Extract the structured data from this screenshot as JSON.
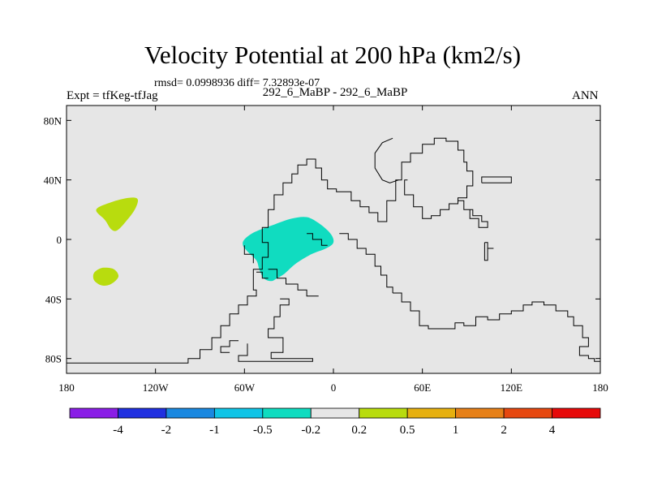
{
  "header": {
    "title": "Velocity Potential at 200 hPa (km2/s)",
    "stats": "rmsd= 0.0998936 diff= 7.32893e-07",
    "left_label": "Expt = tfKeg-tfJag",
    "center_label": "292_6_MaBP - 292_6_MaBP",
    "right_label": "ANN"
  },
  "chart_data": {
    "type": "contour-map",
    "title": "Velocity Potential at 200 hPa (km2/s)",
    "xlim": [
      -180,
      180
    ],
    "ylim": [
      -90,
      90
    ],
    "x_ticks": [
      {
        "value": -180,
        "label": "180"
      },
      {
        "value": -120,
        "label": "120W"
      },
      {
        "value": -60,
        "label": "60W"
      },
      {
        "value": 0,
        "label": "0"
      },
      {
        "value": 60,
        "label": "60E"
      },
      {
        "value": 120,
        "label": "120E"
      },
      {
        "value": 180,
        "label": "180"
      }
    ],
    "y_ticks": [
      {
        "value": 80,
        "label": "80N"
      },
      {
        "value": 40,
        "label": "40N"
      },
      {
        "value": 0,
        "label": "0"
      },
      {
        "value": -40,
        "label": "40S"
      },
      {
        "value": -80,
        "label": "80S"
      }
    ],
    "background_color": "#e6e6e6",
    "colorbar": {
      "colors": [
        "#8a1ee6",
        "#2030e0",
        "#1a88e0",
        "#10c4e6",
        "#10dcc0",
        "#e6e6e6",
        "#b8dc0e",
        "#e6b010",
        "#e68018",
        "#e64810",
        "#e60a0a"
      ],
      "levels": [
        "-4",
        "-2",
        "-1",
        "-0.5",
        "-0.2",
        "0.2",
        "0.5",
        "1",
        "2",
        "4"
      ]
    },
    "regions": [
      {
        "level_bin": "0.2 to 0.5",
        "color": "#b8dc0e",
        "outline": [
          [
            -160,
            20
          ],
          [
            -150,
            25
          ],
          [
            -138,
            28
          ],
          [
            -132,
            27
          ],
          [
            -134,
            20
          ],
          [
            -140,
            12
          ],
          [
            -146,
            6
          ],
          [
            -150,
            7
          ],
          [
            -154,
            13
          ]
        ]
      },
      {
        "level_bin": "0.2 to 0.5",
        "color": "#b8dc0e",
        "outline": [
          [
            -160,
            -21
          ],
          [
            -155,
            -19
          ],
          [
            -148,
            -20
          ],
          [
            -145,
            -25
          ],
          [
            -150,
            -30
          ],
          [
            -156,
            -31
          ],
          [
            -161,
            -28
          ],
          [
            -162,
            -24
          ]
        ]
      },
      {
        "level_bin": "-0.5 to -0.2",
        "color": "#10dcc0",
        "outline": [
          [
            -60,
            0
          ],
          [
            -53,
            5
          ],
          [
            -40,
            10
          ],
          [
            -28,
            14
          ],
          [
            -18,
            15
          ],
          [
            -10,
            11
          ],
          [
            -2,
            4
          ],
          [
            0,
            -2
          ],
          [
            -5,
            -6
          ],
          [
            -15,
            -10
          ],
          [
            -25,
            -16
          ],
          [
            -33,
            -23
          ],
          [
            -38,
            -26
          ],
          [
            -42,
            -28
          ],
          [
            -47,
            -26
          ],
          [
            -50,
            -20
          ],
          [
            -52,
            -14
          ],
          [
            -58,
            -8
          ],
          [
            -61,
            -4
          ]
        ]
      }
    ],
    "coastlines": [
      [
        [
          -180,
          -83
        ],
        [
          -98,
          -83
        ],
        [
          -98,
          -80
        ],
        [
          -90,
          -80
        ],
        [
          -90,
          -74
        ],
        [
          -82,
          -74
        ],
        [
          -82,
          -66
        ],
        [
          -76,
          -66
        ],
        [
          -76,
          -58
        ],
        [
          -70,
          -58
        ],
        [
          -70,
          -50
        ],
        [
          -64,
          -50
        ],
        [
          -64,
          -44
        ],
        [
          -58,
          -44
        ],
        [
          -58,
          -38
        ],
        [
          -52,
          -38
        ],
        [
          -52,
          -34
        ],
        [
          -54,
          -34
        ],
        [
          -54,
          -20
        ],
        [
          -48,
          -20
        ],
        [
          -48,
          -12
        ],
        [
          -44,
          -12
        ],
        [
          -44,
          -2
        ],
        [
          -48,
          -2
        ],
        [
          -48,
          8
        ],
        [
          -44,
          8
        ],
        [
          -44,
          20
        ],
        [
          -40,
          20
        ],
        [
          -40,
          30
        ],
        [
          -34,
          30
        ],
        [
          -34,
          38
        ],
        [
          -28,
          38
        ],
        [
          -28,
          44
        ],
        [
          -24,
          44
        ],
        [
          -24,
          50
        ],
        [
          -18,
          50
        ],
        [
          -18,
          54
        ],
        [
          -12,
          54
        ],
        [
          -12,
          48
        ],
        [
          -8,
          48
        ],
        [
          -8,
          40
        ],
        [
          -4,
          40
        ],
        [
          -4,
          34
        ],
        [
          2,
          34
        ],
        [
          2,
          32
        ],
        [
          12,
          32
        ],
        [
          12,
          26
        ],
        [
          18,
          26
        ],
        [
          18,
          22
        ],
        [
          24,
          22
        ],
        [
          24,
          18
        ],
        [
          30,
          18
        ],
        [
          30,
          12
        ],
        [
          36,
          12
        ],
        [
          36,
          26
        ],
        [
          42,
          26
        ],
        [
          42,
          40
        ],
        [
          46,
          40
        ],
        [
          46,
          52
        ],
        [
          52,
          52
        ],
        [
          52,
          58
        ],
        [
          60,
          58
        ],
        [
          60,
          64
        ],
        [
          68,
          64
        ],
        [
          68,
          68
        ],
        [
          76,
          68
        ],
        [
          76,
          66
        ],
        [
          84,
          66
        ],
        [
          84,
          60
        ],
        [
          88,
          60
        ],
        [
          88,
          52
        ],
        [
          90,
          52
        ],
        [
          90,
          46
        ],
        [
          94,
          46
        ],
        [
          94,
          36
        ],
        [
          90,
          36
        ],
        [
          90,
          28
        ],
        [
          84,
          28
        ],
        [
          84,
          24
        ],
        [
          78,
          24
        ],
        [
          78,
          20
        ],
        [
          72,
          20
        ],
        [
          72,
          16
        ],
        [
          66,
          16
        ],
        [
          66,
          14
        ],
        [
          60,
          14
        ],
        [
          60,
          22
        ],
        [
          54,
          22
        ],
        [
          54,
          30
        ],
        [
          48,
          30
        ],
        [
          48,
          40
        ],
        [
          50,
          40
        ]
      ],
      [
        [
          40,
          68
        ],
        [
          33,
          65
        ],
        [
          28,
          58
        ],
        [
          28,
          48
        ],
        [
          33,
          40
        ],
        [
          38,
          38
        ],
        [
          44,
          40
        ]
      ],
      [
        [
          84,
          26
        ],
        [
          88,
          26
        ],
        [
          88,
          20
        ],
        [
          94,
          20
        ],
        [
          94,
          16
        ],
        [
          100,
          16
        ],
        [
          100,
          12
        ],
        [
          104,
          12
        ],
        [
          104,
          8
        ],
        [
          98,
          8
        ],
        [
          98,
          14
        ],
        [
          92,
          14
        ],
        [
          92,
          20
        ],
        [
          88,
          20
        ]
      ],
      [
        [
          4,
          4
        ],
        [
          10,
          4
        ],
        [
          10,
          0
        ],
        [
          16,
          0
        ],
        [
          16,
          -6
        ],
        [
          22,
          -6
        ],
        [
          22,
          -10
        ],
        [
          28,
          -10
        ],
        [
          28,
          -18
        ],
        [
          32,
          -18
        ],
        [
          32,
          -24
        ],
        [
          36,
          -24
        ],
        [
          36,
          -32
        ],
        [
          40,
          -32
        ],
        [
          40,
          -36
        ]
      ],
      [
        [
          -18,
          4
        ],
        [
          -14,
          4
        ],
        [
          -14,
          0
        ],
        [
          -8,
          0
        ],
        [
          -8,
          -4
        ],
        [
          -4,
          -4
        ]
      ],
      [
        [
          40,
          -36
        ],
        [
          46,
          -36
        ],
        [
          46,
          -42
        ],
        [
          52,
          -42
        ],
        [
          52,
          -48
        ],
        [
          58,
          -48
        ],
        [
          58,
          -58
        ],
        [
          64,
          -58
        ],
        [
          64,
          -60
        ],
        [
          82,
          -60
        ],
        [
          82,
          -56
        ],
        [
          88,
          -56
        ],
        [
          88,
          -58
        ],
        [
          96,
          -58
        ],
        [
          96,
          -52
        ],
        [
          104,
          -52
        ],
        [
          104,
          -54
        ],
        [
          112,
          -54
        ],
        [
          112,
          -50
        ],
        [
          120,
          -50
        ],
        [
          120,
          -48
        ],
        [
          128,
          -48
        ],
        [
          128,
          -44
        ],
        [
          134,
          -44
        ],
        [
          134,
          -42
        ],
        [
          142,
          -42
        ],
        [
          142,
          -44
        ],
        [
          150,
          -44
        ],
        [
          150,
          -48
        ],
        [
          158,
          -48
        ],
        [
          158,
          -52
        ],
        [
          162,
          -52
        ],
        [
          162,
          -58
        ],
        [
          168,
          -58
        ],
        [
          168,
          -66
        ],
        [
          172,
          -66
        ],
        [
          172,
          -72
        ],
        [
          166,
          -72
        ],
        [
          166,
          -78
        ],
        [
          172,
          -78
        ],
        [
          172,
          -80
        ],
        [
          176,
          -80
        ],
        [
          176,
          -82
        ],
        [
          180,
          -82
        ]
      ],
      [
        [
          -60,
          -4
        ],
        [
          -60,
          -10
        ],
        [
          -54,
          -10
        ],
        [
          -54,
          -16
        ]
      ],
      [
        [
          -44,
          -20
        ],
        [
          -38,
          -20
        ],
        [
          -38,
          -26
        ],
        [
          -32,
          -26
        ],
        [
          -32,
          -30
        ],
        [
          -24,
          -30
        ],
        [
          -24,
          -34
        ],
        [
          -18,
          -34
        ],
        [
          -18,
          -38
        ],
        [
          -10,
          -38
        ]
      ],
      [
        [
          -36,
          -40
        ],
        [
          -30,
          -40
        ],
        [
          -30,
          -44
        ],
        [
          -36,
          -44
        ],
        [
          -36,
          -52
        ],
        [
          -40,
          -52
        ],
        [
          -40,
          -60
        ],
        [
          -44,
          -60
        ],
        [
          -44,
          -66
        ],
        [
          -34,
          -66
        ],
        [
          -34,
          -76
        ],
        [
          -42,
          -76
        ],
        [
          -42,
          -80
        ],
        [
          -14,
          -80
        ],
        [
          -14,
          -82
        ],
        [
          -64,
          -82
        ],
        [
          -64,
          -78
        ],
        [
          -58,
          -78
        ],
        [
          -58,
          -70
        ]
      ],
      [
        [
          -64,
          -68
        ],
        [
          -70,
          -68
        ],
        [
          -70,
          -72
        ],
        [
          -76,
          -72
        ],
        [
          -76,
          -76
        ],
        [
          -70,
          -76
        ]
      ],
      [
        [
          -44,
          -26
        ],
        [
          -48,
          -26
        ],
        [
          -48,
          -22
        ],
        [
          -52,
          -22
        ]
      ],
      [
        [
          100,
          38
        ],
        [
          120,
          38
        ],
        [
          120,
          42
        ],
        [
          100,
          42
        ],
        [
          100,
          38
        ]
      ],
      [
        [
          102,
          -2
        ],
        [
          104,
          -2
        ],
        [
          104,
          -14
        ],
        [
          102,
          -14
        ],
        [
          102,
          -2
        ]
      ],
      [
        [
          104,
          -6
        ],
        [
          108,
          -6
        ]
      ]
    ]
  }
}
